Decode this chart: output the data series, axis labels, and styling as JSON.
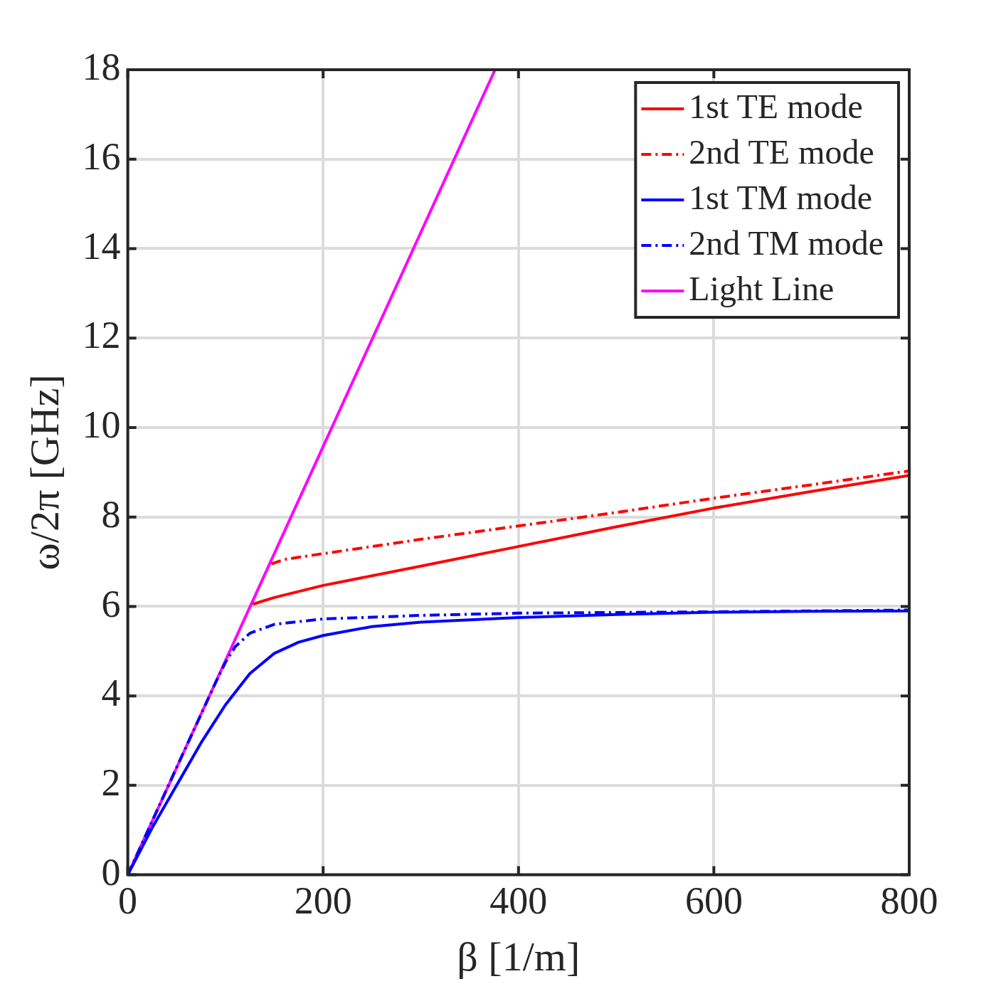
{
  "chart_data": {
    "type": "line",
    "xlabel": "β [1/m]",
    "ylabel": "ω/2π [GHz]",
    "xlim": [
      0,
      800
    ],
    "xticks": [
      0,
      200,
      400,
      600,
      800
    ],
    "ylim": [
      0,
      18
    ],
    "yticks": [
      0,
      2,
      4,
      6,
      8,
      10,
      12,
      14,
      16,
      18
    ],
    "grid": true,
    "legend": "top right",
    "marker": "none",
    "series": [
      {
        "name": "1st TE mode",
        "color": "#ff0000",
        "line_style": "solid",
        "x": [
          128,
          150,
          200,
          300,
          400,
          500,
          600,
          700,
          800
        ],
        "values": [
          6.05,
          6.2,
          6.47,
          6.9,
          7.34,
          7.78,
          8.2,
          8.57,
          8.93
        ]
      },
      {
        "name": "2nd TE mode",
        "color": "#ff0000",
        "line_style": "dashed",
        "x": [
          147,
          160,
          200,
          300,
          400,
          500,
          600,
          700,
          800
        ],
        "values": [
          6.95,
          7.05,
          7.18,
          7.5,
          7.8,
          8.1,
          8.42,
          8.72,
          9.03
        ]
      },
      {
        "name": "1st TM mode",
        "color": "#0000ff",
        "line_style": "solid",
        "x": [
          0,
          25,
          50,
          75,
          100,
          125,
          150,
          175,
          200,
          250,
          300,
          400,
          500,
          600,
          700,
          800
        ],
        "values": [
          0,
          1.05,
          2.0,
          2.95,
          3.8,
          4.5,
          4.95,
          5.2,
          5.35,
          5.55,
          5.65,
          5.75,
          5.82,
          5.87,
          5.89,
          5.9
        ]
      },
      {
        "name": "2nd TM mode",
        "color": "#0000ff",
        "line_style": "dashed",
        "x": [
          0,
          50,
          90,
          100,
          110,
          125,
          150,
          200,
          300,
          400,
          600,
          800
        ],
        "values": [
          0,
          2.4,
          4.3,
          4.75,
          5.1,
          5.4,
          5.6,
          5.72,
          5.8,
          5.85,
          5.88,
          5.92
        ]
      },
      {
        "name": "Light Line",
        "color": "#ff00ff",
        "line_style": "solid",
        "x": [
          0,
          376
        ],
        "values": [
          0,
          18
        ]
      }
    ]
  }
}
